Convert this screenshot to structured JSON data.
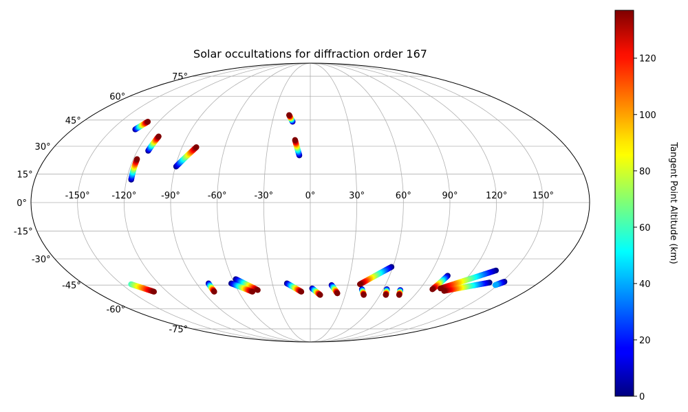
{
  "chart_data": {
    "type": "scatter",
    "projection": "Mollweide",
    "title": "Solar occultations for diffraction order 167",
    "grid": true,
    "lon_ticks": [
      -150,
      -120,
      -90,
      -60,
      -30,
      0,
      30,
      60,
      90,
      120,
      150
    ],
    "lat_ticks": [
      -75,
      -60,
      -45,
      -30,
      -15,
      0,
      15,
      30,
      45,
      60,
      75
    ],
    "lon_tick_labels": [
      "-150°",
      "-120°",
      "-90°",
      "-60°",
      "-30°",
      "0°",
      "30°",
      "60°",
      "90°",
      "120°",
      "150°"
    ],
    "lat_tick_labels": [
      "-75°",
      "-60°",
      "-45°",
      "-30°",
      "-15°",
      "0°",
      "15°",
      "30°",
      "45°",
      "60°",
      "75°"
    ],
    "colorbar": {
      "label": "Tangent Point Altitude (km)",
      "colormap": "jet",
      "range": [
        0,
        137
      ],
      "ticks": [
        0,
        20,
        40,
        60,
        80,
        100,
        120
      ],
      "tick_labels": [
        "0",
        "20",
        "40",
        "60",
        "80",
        "100",
        "120"
      ]
    },
    "tracks": [
      {
        "lon": [
          -132.5,
          -128.5
        ],
        "lat": [
          39.5,
          44.0
        ],
        "alt": [
          0,
          137
        ]
      },
      {
        "lon": [
          -112.5,
          -111.0
        ],
        "lat": [
          27.5,
          35.5
        ],
        "alt": [
          0,
          137
        ]
      },
      {
        "lon": [
          -117.0,
          -117.5
        ],
        "lat": [
          12.0,
          23.0
        ],
        "alt": [
          0,
          137
        ]
      },
      {
        "lon": [
          -89.5,
          -80.0
        ],
        "lat": [
          19.0,
          29.5
        ],
        "alt": [
          0,
          137
        ]
      },
      {
        "lon": [
          -14.0,
          -17.5
        ],
        "lat": [
          44.0,
          48.0
        ],
        "alt": [
          0,
          137
        ]
      },
      {
        "lon": [
          -7.5,
          -11.0
        ],
        "lat": [
          25.0,
          33.5
        ],
        "alt": [
          0,
          137
        ]
      },
      {
        "lon": [
          -142.5,
          -131.0
        ],
        "lat": [
          -44.5,
          -49.0
        ],
        "alt": [
          60,
          137
        ]
      },
      {
        "lon": [
          -80.5,
          -80.5
        ],
        "lat": [
          -44.0,
          -49.0
        ],
        "alt": [
          0,
          137
        ]
      },
      {
        "lon": [
          -57.5,
          -43.5
        ],
        "lat": [
          -41.5,
          -48.0
        ],
        "alt": [
          0,
          137
        ]
      },
      {
        "lon": [
          -62.5,
          -48.5
        ],
        "lat": [
          -44.0,
          -49.0
        ],
        "alt": [
          0,
          137
        ]
      },
      {
        "lon": [
          -18.5,
          -7.5
        ],
        "lat": [
          -44.0,
          -49.0
        ],
        "alt": [
          0,
          137
        ]
      },
      {
        "lon": [
          1.5,
          8.5
        ],
        "lat": [
          -47.0,
          -51.0
        ],
        "alt": [
          0,
          137
        ]
      },
      {
        "lon": [
          17.0,
          23.0
        ],
        "lat": [
          -45.0,
          -50.0
        ],
        "alt": [
          0,
          137
        ]
      },
      {
        "lon": [
          59.0,
          39.5
        ],
        "lat": [
          -34.5,
          -44.5
        ],
        "alt": [
          0,
          137
        ]
      },
      {
        "lon": [
          42.5,
          46.0
        ],
        "lat": [
          -47.5,
          -51.0
        ],
        "alt": [
          0,
          137
        ]
      },
      {
        "lon": [
          63.0,
          65.0
        ],
        "lat": [
          -47.5,
          -51.0
        ],
        "alt": [
          0,
          137
        ]
      },
      {
        "lon": [
          74.5,
          76.5
        ],
        "lat": [
          -48.0,
          -51.0
        ],
        "alt": [
          0,
          137
        ]
      },
      {
        "lon": [
          104.0,
          100.5
        ],
        "lat": [
          -39.5,
          -47.5
        ],
        "alt": [
          0,
          137
        ]
      },
      {
        "lon": [
          137.0,
          106.5
        ],
        "lat": [
          -36.5,
          -47.0
        ],
        "alt": [
          0,
          137
        ]
      },
      {
        "lon": [
          141.0,
          111.5
        ],
        "lat": [
          -43.5,
          -48.5
        ],
        "alt": [
          0,
          137
        ]
      },
      {
        "lon": [
          152.0,
          148.0
        ],
        "lat": [
          -43.0,
          -45.0
        ],
        "alt": [
          0,
          40
        ]
      }
    ]
  }
}
